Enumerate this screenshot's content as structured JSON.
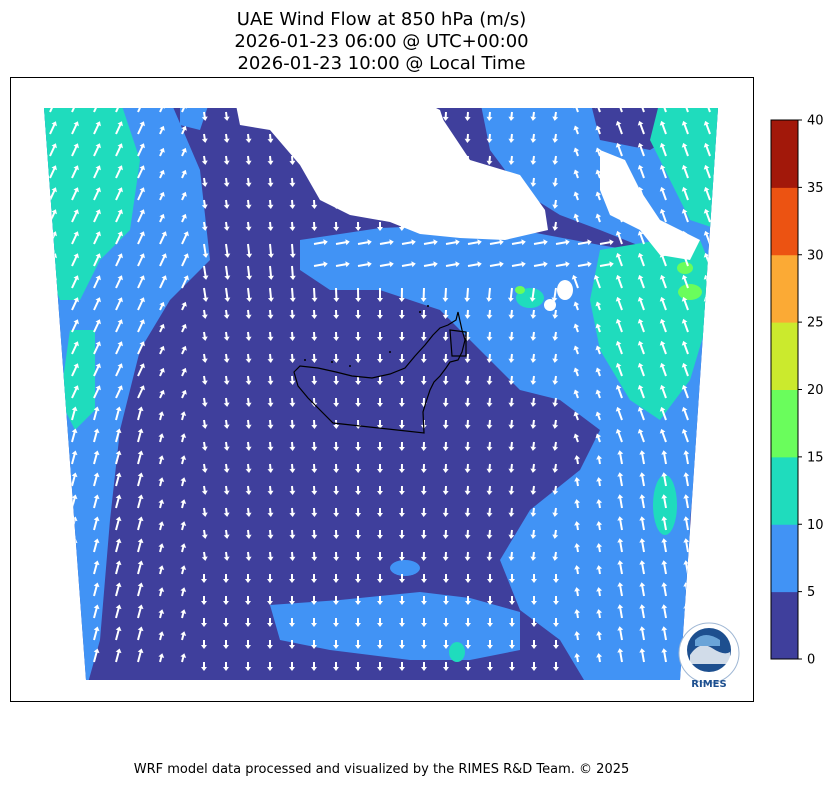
{
  "title": {
    "line1": "UAE Wind Flow at 850 hPa (m/s)",
    "line2": "2026-01-23 06:00 @ UTC+00:00",
    "line3": "2026-01-23 10:00 @ Local Time"
  },
  "colorbar": {
    "ticks": [
      "0",
      "5",
      "10",
      "15",
      "20",
      "25",
      "30",
      "35",
      "40"
    ],
    "levels": [
      0,
      5,
      10,
      15,
      20,
      25,
      30,
      35,
      40
    ],
    "colors": [
      "#3f3f9c",
      "#4193f5",
      "#1fdcbd",
      "#6afd5c",
      "#cbea2d",
      "#fbaa35",
      "#ec5312",
      "#a2180a"
    ]
  },
  "logo": {
    "text": "RIMES"
  },
  "footer": "WRF model data processed and visualized by the RIMES R&D Team. © 2025",
  "colors": {
    "land_outline": "#000000",
    "arrow": "#ffffff",
    "cloud_mask": "#ffffff"
  }
}
